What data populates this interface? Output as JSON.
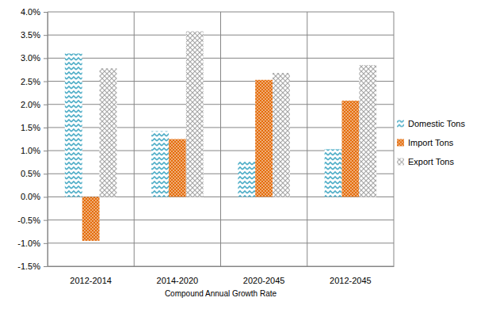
{
  "chart_data": {
    "type": "bar",
    "categories": [
      "2012-2014",
      "2014-2020",
      "2020-2045",
      "2012-2045"
    ],
    "x_label": "Compound Annual Growth Rate",
    "series": [
      {
        "name": "Domestic Tons",
        "color": "#4bacc6",
        "values": [
          3.1,
          1.42,
          0.77,
          1.03
        ]
      },
      {
        "name": "Import Tons",
        "color": "#e46c0a",
        "values": [
          -0.95,
          1.25,
          2.53,
          2.08
        ]
      },
      {
        "name": "Export Tons",
        "color": "#a6a6a6",
        "values": [
          2.78,
          3.58,
          2.68,
          2.85
        ]
      }
    ],
    "ylim": [
      -1.5,
      4.0
    ],
    "yticks": [
      {
        "value": -1.5,
        "label": "-1.5%"
      },
      {
        "value": -1.0,
        "label": "-1.0%"
      },
      {
        "value": -0.5,
        "label": "-0.5%"
      },
      {
        "value": 0.0,
        "label": "0.0%"
      },
      {
        "value": 0.5,
        "label": "0.5%"
      },
      {
        "value": 1.0,
        "label": "1.0%"
      },
      {
        "value": 1.5,
        "label": "1.5%"
      },
      {
        "value": 2.0,
        "label": "2.0%"
      },
      {
        "value": 2.5,
        "label": "2.5%"
      },
      {
        "value": 3.0,
        "label": "3.0%"
      },
      {
        "value": 3.5,
        "label": "3.5%"
      },
      {
        "value": 4.0,
        "label": "4.0%"
      }
    ],
    "grid": true,
    "legend": "right"
  }
}
